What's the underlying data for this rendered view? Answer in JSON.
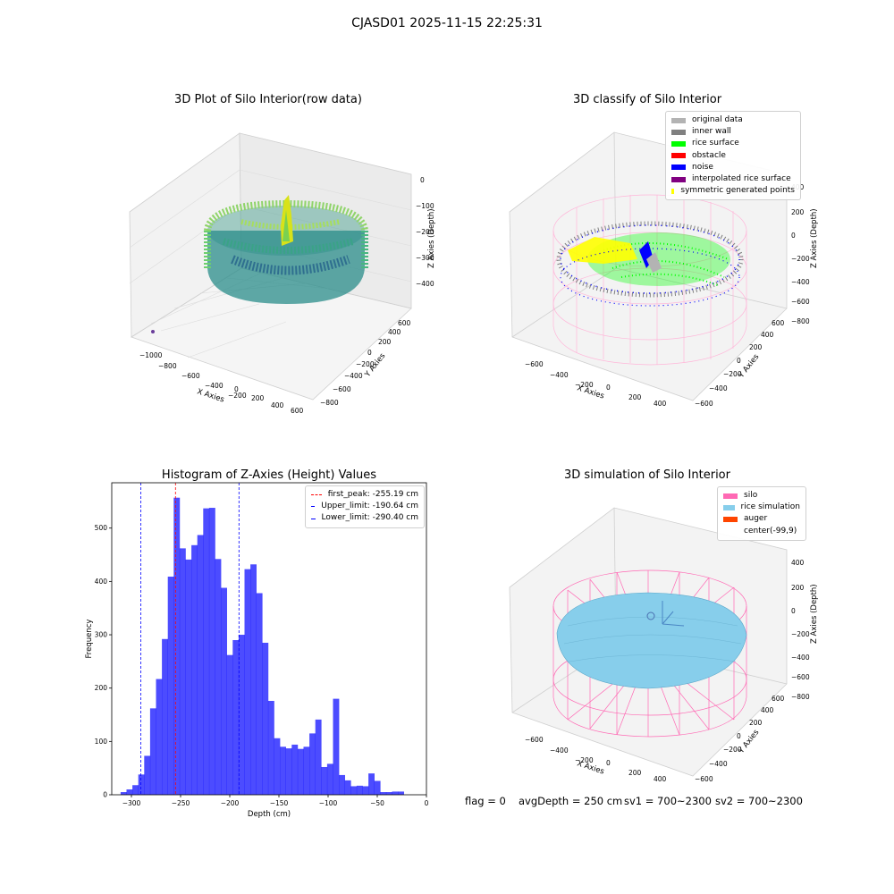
{
  "suptitle": "CJASD01 2025-11-15 22:25:31",
  "panel1": {
    "title": "3D Plot of Silo Interior(row data)",
    "xlabel": "X Axies",
    "ylabel": "Y Axies",
    "zlabel": "Z Axies (Depth)",
    "xticks": [
      "−1000",
      "−800",
      "−600",
      "−400",
      "−200",
      "0",
      "200",
      "400",
      "600"
    ],
    "yticks": [
      "−800",
      "−600",
      "−400",
      "−200",
      "0",
      "200",
      "400",
      "600"
    ],
    "zticks": [
      "0",
      "−100",
      "−200",
      "−300",
      "−400"
    ]
  },
  "panel2": {
    "title": "3D classify of Silo Interior",
    "xlabel": "X Axies",
    "ylabel": "Y Axies",
    "zlabel": "Z Axies (Depth)",
    "xticks": [
      "−600",
      "−400",
      "−200",
      "0",
      "200",
      "400"
    ],
    "yticks": [
      "−600",
      "−400",
      "−200",
      "0",
      "200",
      "400",
      "600"
    ],
    "zticks": [
      "400",
      "200",
      "0",
      "−200",
      "−400",
      "−600",
      "−800"
    ],
    "legend": [
      {
        "label": "original data",
        "color": "#b3b3b3"
      },
      {
        "label": "inner wall",
        "color": "#808080"
      },
      {
        "label": "rice surface",
        "color": "#00ff00"
      },
      {
        "label": "obstacle",
        "color": "#ff0000"
      },
      {
        "label": "noise",
        "color": "#0000ff"
      },
      {
        "label": "interpolated rice surface",
        "color": "#800080"
      },
      {
        "label": "symmetric generated points",
        "color": "#ffff00"
      }
    ]
  },
  "panel4": {
    "title": "3D simulation of Silo Interior",
    "xlabel": "X Axies",
    "ylabel": "Y Axies",
    "zlabel": "Z Axies (Depth)",
    "xticks": [
      "−600",
      "−400",
      "−200",
      "0",
      "200",
      "400"
    ],
    "yticks": [
      "−600",
      "−400",
      "−200",
      "0",
      "200",
      "400",
      "600"
    ],
    "zticks": [
      "400",
      "200",
      "0",
      "−200",
      "−400",
      "−600",
      "−800"
    ],
    "legend": [
      {
        "label": "silo",
        "color": "#ff69b4"
      },
      {
        "label": "rice simulation",
        "color": "#87ceeb"
      },
      {
        "label": "auger",
        "color": "#ff4500"
      },
      {
        "label": "center(-99,9)",
        "color": "#ffffff"
      }
    ]
  },
  "status": {
    "flag": "flag = 0",
    "avg": "avgDepth = 250 cm",
    "sv1": "sv1 = 700~2300",
    "sv2": "sv2 = 700~2300"
  },
  "chart_data": {
    "type": "bar",
    "title": "Histogram of Z-Axies (Height) Values",
    "xlabel": "Depth (cm)",
    "ylabel": "Frequency",
    "xlim": [
      -320,
      0
    ],
    "ylim": [
      0,
      585
    ],
    "xticks": [
      -300,
      -250,
      -200,
      -150,
      -100,
      -50,
      0
    ],
    "yticks": [
      0,
      100,
      200,
      300,
      400,
      500
    ],
    "bin_width": 6,
    "bin_start": -311,
    "values": [
      5,
      10,
      18,
      38,
      73,
      162,
      217,
      292,
      409,
      557,
      462,
      441,
      468,
      487,
      537,
      538,
      442,
      388,
      262,
      290,
      300,
      423,
      432,
      378,
      285,
      176,
      106,
      90,
      87,
      94,
      86,
      90,
      115,
      141,
      52,
      58,
      180,
      37,
      27,
      16,
      17,
      16,
      40,
      26,
      5,
      5,
      6,
      6
    ],
    "color": "#0000ff",
    "vlines": [
      {
        "label": "first_peak: -255.19 cm",
        "x": -255.19,
        "color": "#ff0000"
      },
      {
        "label": "Upper_limit: -190.64 cm",
        "x": -190.64,
        "color": "#0000ff"
      },
      {
        "label": "Lower_limit: -290.40 cm",
        "x": -290.4,
        "color": "#0000ff"
      }
    ]
  }
}
